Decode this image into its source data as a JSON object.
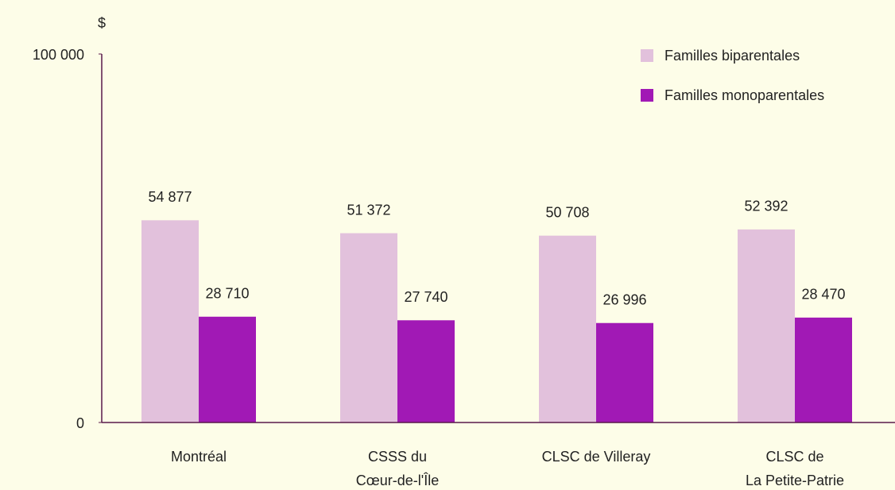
{
  "chart_data": {
    "type": "bar",
    "unit": "$",
    "categories": [
      [
        "Montréal"
      ],
      [
        "CSSS du",
        "Cœur-de-l'Île"
      ],
      [
        "CLSC de Villeray"
      ],
      [
        "CLSC de",
        "La Petite-Patrie"
      ]
    ],
    "series": [
      {
        "name": "Familles biparentales",
        "color": "#e2c1dc",
        "values": [
          54877,
          51372,
          50708,
          52392
        ],
        "value_labels": [
          "54 877",
          "51 372",
          "50 708",
          "52 392"
        ]
      },
      {
        "name": "Familles monoparentales",
        "color": "#a119b5",
        "values": [
          28710,
          27740,
          26996,
          28470
        ],
        "value_labels": [
          "28 710",
          "27 740",
          "26 996",
          "28 470"
        ]
      }
    ],
    "ylim": [
      0,
      100000
    ],
    "yticks": [
      0,
      {
        "value": 100000,
        "label": "100 000"
      }
    ],
    "legend": "upper right"
  }
}
